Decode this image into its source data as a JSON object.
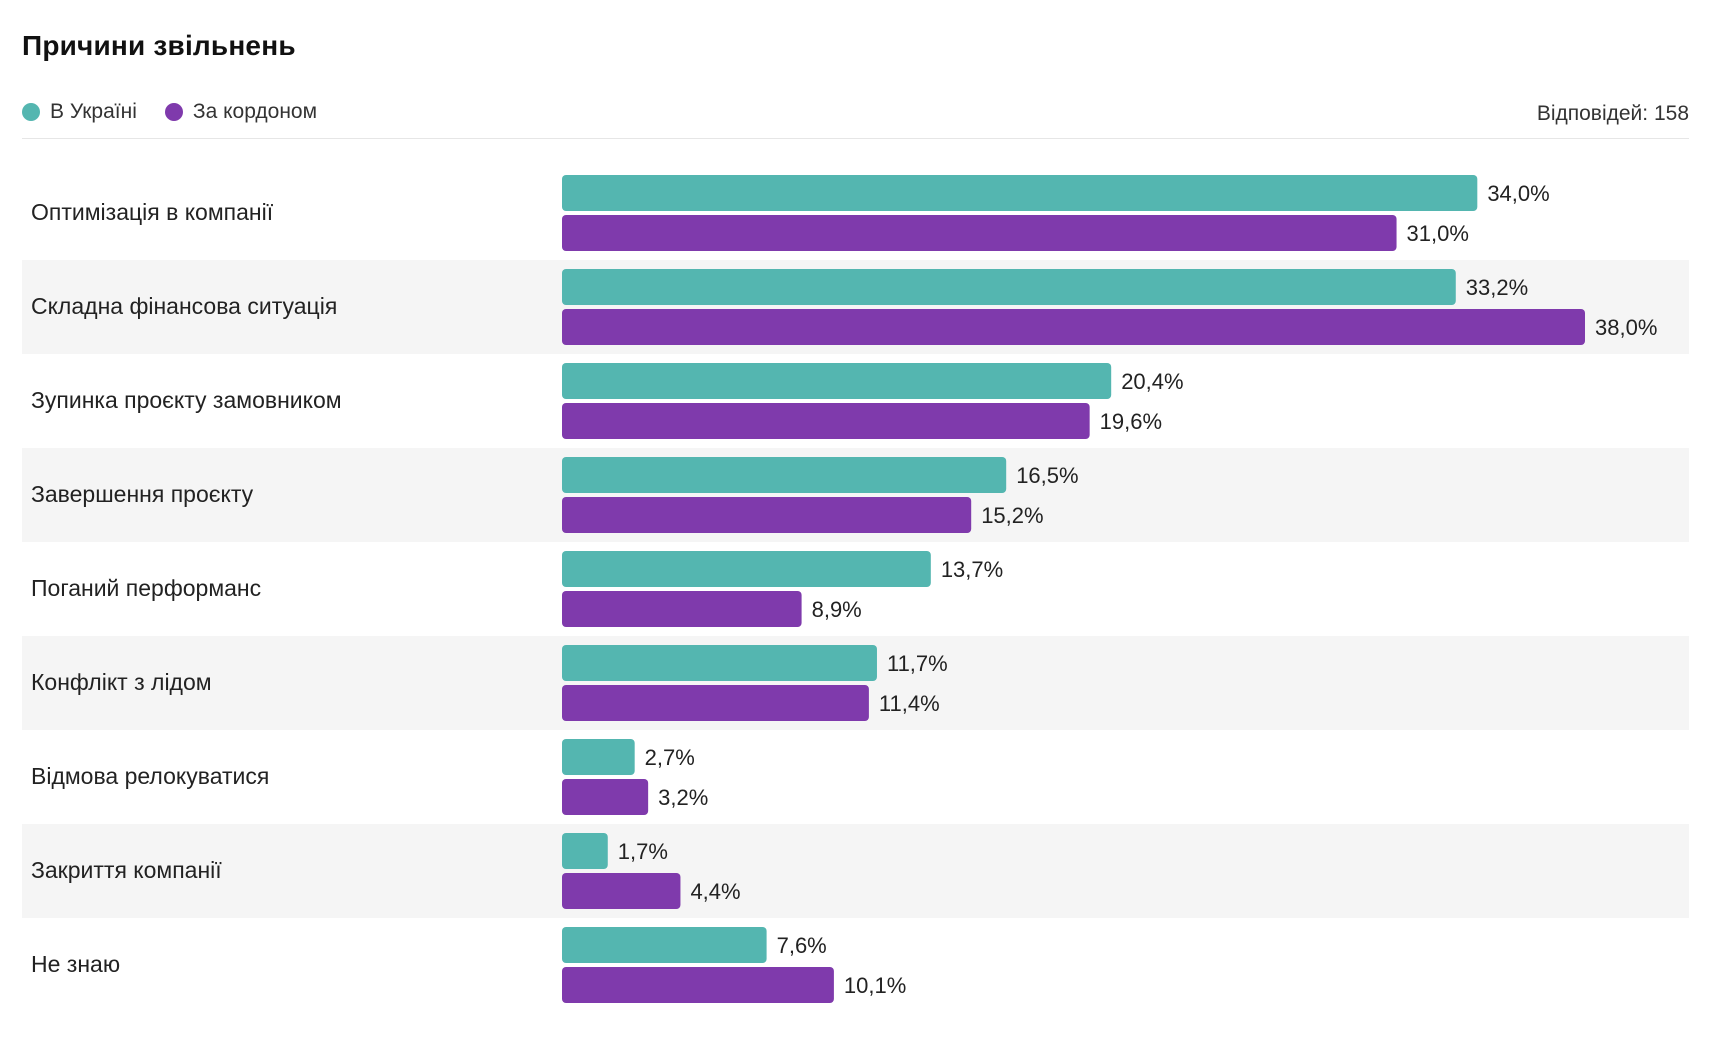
{
  "chart_data": {
    "type": "bar",
    "orientation": "horizontal",
    "title": "Причини звільнень",
    "responses_label": "Відповідей: 158",
    "categories": [
      "Оптимізація в компанії",
      "Складна фінансова ситуація",
      "Зупинка проєкту замовником",
      "Завершення проєкту",
      "Поганий перформанс",
      "Конфлікт з лідом",
      "Відмова релокуватися",
      "Закриття компанії",
      "Не знаю"
    ],
    "series": [
      {
        "name": "В Україні",
        "color": "#54b6b0",
        "values": [
          34.0,
          33.2,
          20.4,
          16.5,
          13.7,
          11.7,
          2.7,
          1.7,
          7.6
        ],
        "labels": [
          "34,0%",
          "33,2%",
          "20,4%",
          "16,5%",
          "13,7%",
          "11,7%",
          "2,7%",
          "1,7%",
          "7,6%"
        ]
      },
      {
        "name": "За кордоном",
        "color": "#7f3aac",
        "values": [
          31.0,
          38.0,
          19.6,
          15.2,
          8.9,
          11.4,
          3.2,
          4.4,
          10.1
        ],
        "labels": [
          "31,0%",
          "38,0%",
          "19,6%",
          "15,2%",
          "8,9%",
          "11,4%",
          "3,2%",
          "4,4%",
          "10,1%"
        ]
      }
    ],
    "xlim": [
      0,
      38
    ],
    "legend_position": "top-left",
    "stripe_color": "#f5f5f5"
  }
}
